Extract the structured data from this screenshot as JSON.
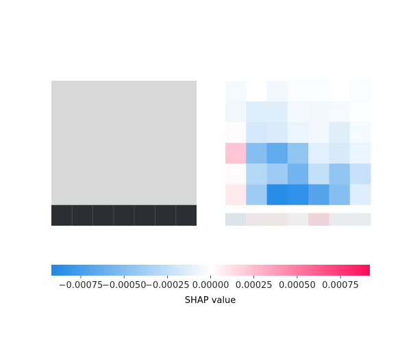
{
  "chart_data": {
    "type": "heatmap",
    "panels": [
      {
        "name": "original-image",
        "image": {
          "rows": 7,
          "cols": 7,
          "light_rows": 6,
          "light_color": "#d8d8d8",
          "dark_row_color": "#2b2f33",
          "dark_row_line_color": "#454a4f"
        }
      },
      {
        "name": "shap-explanation",
        "rows": 7,
        "cols": 7,
        "shap_values": [
          [
            -4e-05,
            0.0,
            -6e-05,
            -2e-05,
            -2e-05,
            0.0,
            -2e-05
          ],
          [
            -6e-05,
            -0.00013,
            -0.00013,
            -5e-05,
            -6e-05,
            -4e-05,
            -1e-05
          ],
          [
            1e-05,
            -0.00018,
            -0.00015,
            -8e-05,
            -6e-05,
            -0.00013,
            -4e-05
          ],
          [
            0.00022,
            -0.0005,
            -0.00065,
            -0.00045,
            -0.00012,
            -0.00016,
            -8e-05
          ],
          [
            2e-05,
            -0.0003,
            -0.0004,
            -0.00058,
            -0.00024,
            -0.00045,
            -0.00023
          ],
          [
            8e-05,
            -0.0004,
            -0.00088,
            -0.00085,
            -0.0007,
            -0.0005,
            -0.00013
          ],
          [
            -0.00013,
            5e-05,
            7e-05,
            0.0,
            0.00018,
            -3e-05,
            -3e-05
          ]
        ],
        "background_light_rows": 6,
        "background_light_color": "#d8d8d8",
        "background_dark_color": "#2b2f33"
      }
    ],
    "colorbar": {
      "cmap": [
        "#1e88e5",
        "#ffffff",
        "#ff0d57"
      ],
      "vmin": -0.00092,
      "vmax": 0.00092,
      "ticks": [
        -0.00075,
        -0.0005,
        -0.00025,
        0.0,
        0.00025,
        0.0005,
        0.00075
      ],
      "tick_labels": [
        "−0.00075",
        "−0.00050",
        "−0.00025",
        "0.00000",
        "0.00025",
        "0.00050",
        "0.00075"
      ],
      "label": "SHAP value"
    }
  }
}
